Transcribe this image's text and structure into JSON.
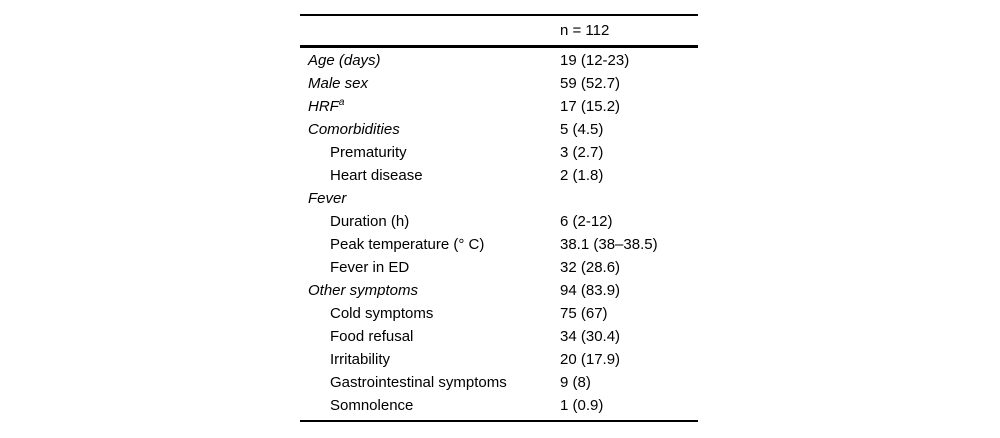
{
  "table": {
    "header": {
      "n_label": "n = 112"
    },
    "rows": [
      {
        "label": "Age (days)",
        "value": "19 (12-23)",
        "style": "section"
      },
      {
        "label": "Male sex",
        "value": "59 (52.7)",
        "style": "section"
      },
      {
        "label": "HRF",
        "sup": "a",
        "value": "17 (15.2)",
        "style": "section"
      },
      {
        "label": "Comorbidities",
        "value": "5 (4.5)",
        "style": "section"
      },
      {
        "label": "Prematurity",
        "value": "3 (2.7)",
        "style": "sub"
      },
      {
        "label": "Heart disease",
        "value": "2 (1.8)",
        "style": "sub"
      },
      {
        "label": "Fever",
        "value": "",
        "style": "section"
      },
      {
        "label": "Duration (h)",
        "value": "6 (2-12)",
        "style": "sub"
      },
      {
        "label": "Peak temperature (° C)",
        "value": "38.1 (38–38.5)",
        "style": "sub"
      },
      {
        "label": "Fever in ED",
        "value": "32 (28.6)",
        "style": "sub"
      },
      {
        "label": "Other symptoms",
        "value": "94 (83.9)",
        "style": "section"
      },
      {
        "label": "Cold symptoms",
        "value": "75 (67)",
        "style": "sub"
      },
      {
        "label": "Food refusal",
        "value": "34 (30.4)",
        "style": "sub"
      },
      {
        "label": "Irritability",
        "value": "20 (17.9)",
        "style": "sub"
      },
      {
        "label": "Gastrointestinal symptoms",
        "value": "9 (8)",
        "style": "sub"
      },
      {
        "label": "Somnolence",
        "value": "1 (0.9)",
        "style": "sub"
      }
    ]
  }
}
